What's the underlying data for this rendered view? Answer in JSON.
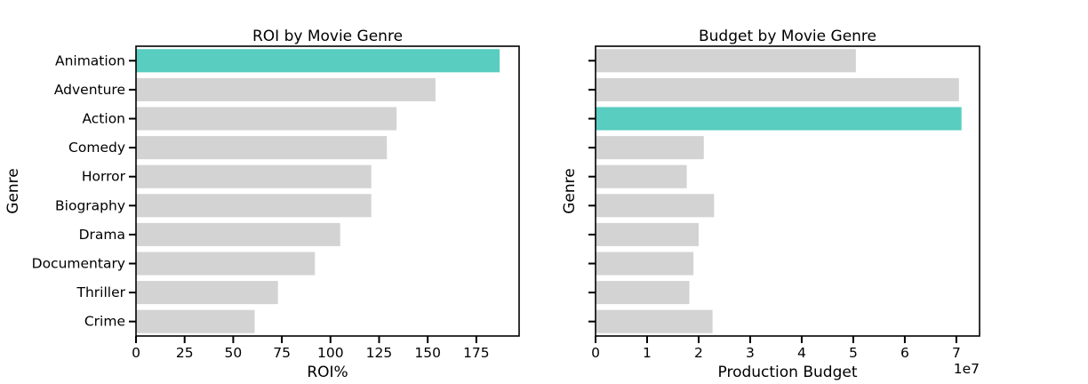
{
  "chart_data": [
    {
      "type": "bar",
      "orientation": "horizontal",
      "title": "ROI by Movie Genre",
      "xlabel": "ROI%",
      "ylabel": "Genre",
      "categories": [
        "Animation",
        "Adventure",
        "Action",
        "Comedy",
        "Horror",
        "Biography",
        "Drama",
        "Documentary",
        "Thriller",
        "Crime"
      ],
      "values": [
        187,
        154,
        134,
        129,
        121,
        121,
        105,
        92,
        73,
        61
      ],
      "highlight": "Animation",
      "xlim": [
        0,
        197
      ],
      "xticks": [
        0,
        25,
        50,
        75,
        100,
        125,
        150,
        175
      ],
      "show_category_labels": true,
      "grid": false
    },
    {
      "type": "bar",
      "orientation": "horizontal",
      "title": "Budget by Movie Genre",
      "xlabel": "Production Budget",
      "ylabel": "Genre",
      "x_offset_label": "1e7",
      "categories": [
        "Animation",
        "Adventure",
        "Action",
        "Comedy",
        "Horror",
        "Biography",
        "Drama",
        "Documentary",
        "Thriller",
        "Crime"
      ],
      "values": [
        50500000,
        70500000,
        71000000,
        21000000,
        17700000,
        23000000,
        20000000,
        19000000,
        18200000,
        22700000
      ],
      "highlight": "Action",
      "xlim": [
        0,
        74500000
      ],
      "xticks": [
        0,
        10000000,
        20000000,
        30000000,
        40000000,
        50000000,
        60000000,
        70000000
      ],
      "xtick_labels": [
        "0",
        "1",
        "2",
        "3",
        "4",
        "5",
        "6",
        "7"
      ],
      "show_category_labels": false,
      "grid": false
    }
  ],
  "colors": {
    "highlight": "#58cdc0",
    "bar": "#d3d3d3",
    "axis": "#000000"
  }
}
